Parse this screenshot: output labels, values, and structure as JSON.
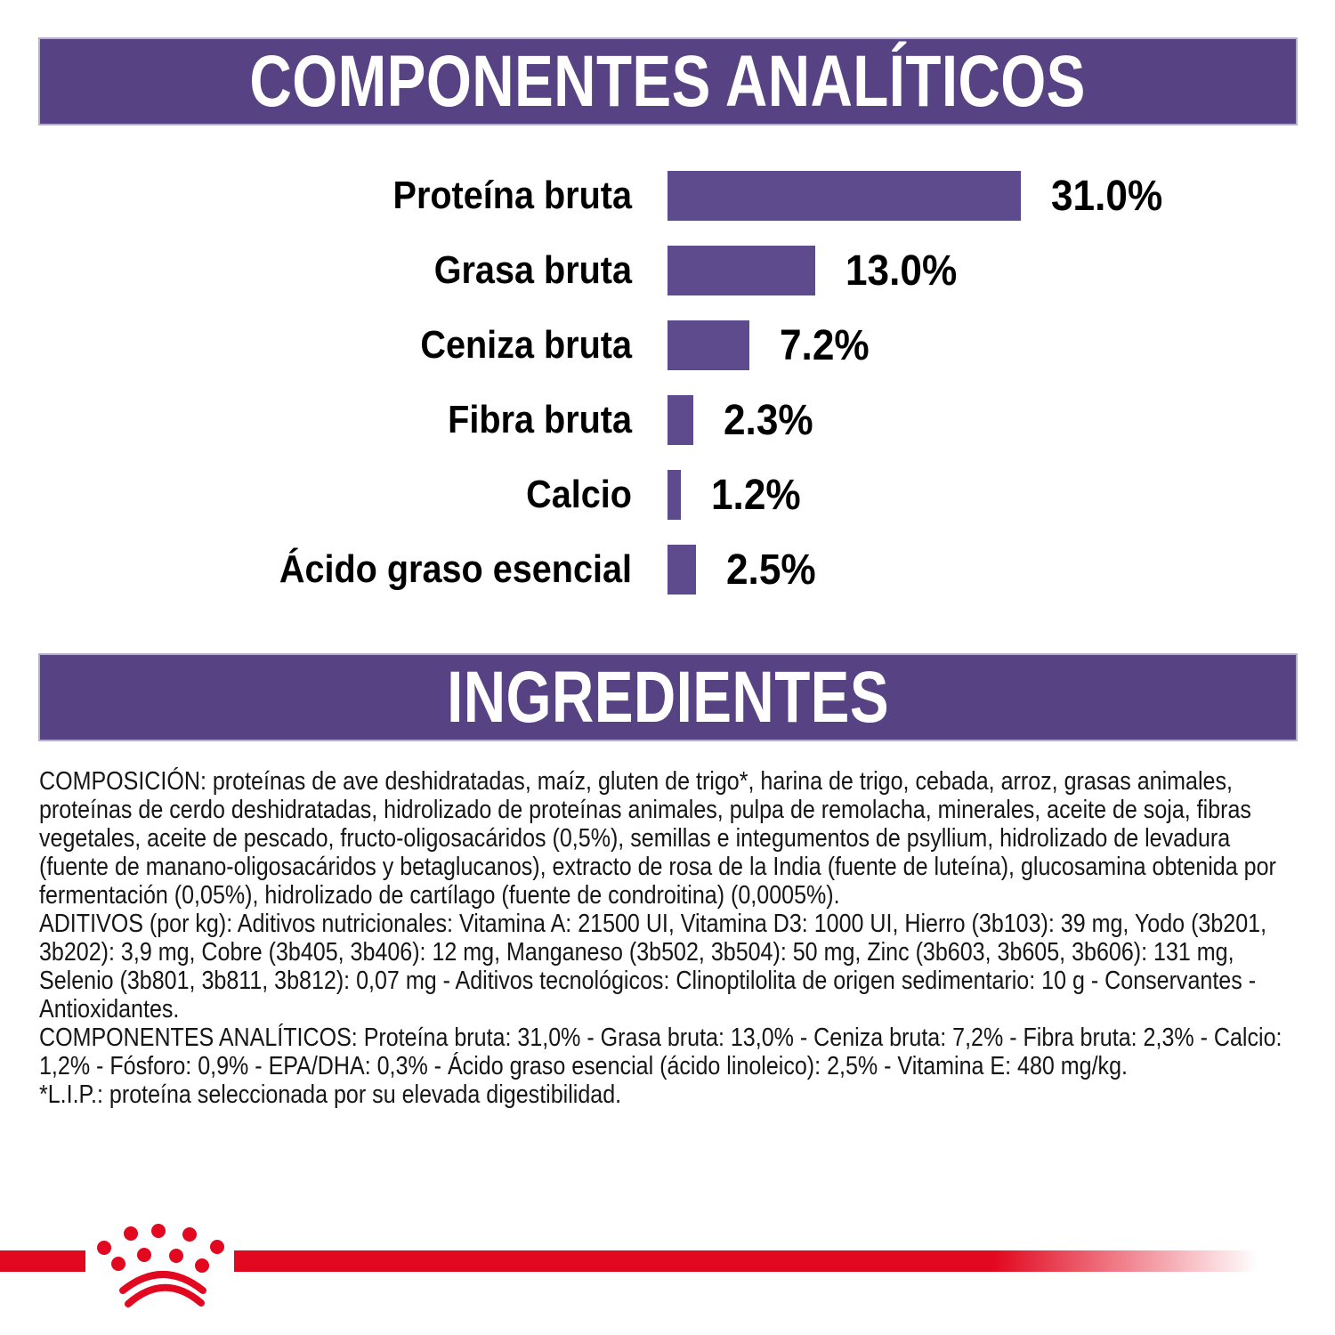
{
  "colors": {
    "purple_banner": "#574284",
    "purple_bar": "#5d4b8d",
    "red": "#e2081f",
    "text": "#161616"
  },
  "sections": {
    "analytical_title": "COMPONENTES ANALÍTICOS",
    "ingredients_title": "INGREDIENTES"
  },
  "chart_data": {
    "type": "bar",
    "orientation": "horizontal",
    "title": "COMPONENTES ANALÍTICOS",
    "categories": [
      "Proteína bruta",
      "Grasa bruta",
      "Ceniza bruta",
      "Fibra bruta",
      "Calcio",
      "Ácido graso esencial"
    ],
    "values": [
      31.0,
      13.0,
      7.2,
      2.3,
      1.2,
      2.5
    ],
    "value_labels": [
      "31.0%",
      "13.0%",
      "7.2%",
      "2.3%",
      "1.2%",
      "2.5%"
    ],
    "unit": "%",
    "xlim": [
      0,
      31
    ],
    "grid": false,
    "legend": false,
    "bar_color": "#5d4b8d",
    "label_position": "left",
    "value_position": "right-of-bar"
  },
  "ingredients_text": {
    "composition": "COMPOSICIÓN: proteínas de ave deshidratadas, maíz, gluten de trigo*, harina de trigo, cebada, arroz, grasas animales, proteínas de cerdo deshidratadas, hidrolizado de proteínas animales, pulpa de remolacha, minerales, aceite de soja, fibras vegetales, aceite de pescado, fructo-oligosacáridos (0,5%), semillas e integumentos de psyllium, hidrolizado de levadura (fuente de manano-oligosacáridos y betaglucanos), extracto de rosa de la India (fuente de luteína), glucosamina obtenida por fermentación (0,05%), hidrolizado de cartílago (fuente de condroitina) (0,0005%).",
    "additives": "ADITIVOS (por kg): Aditivos nutricionales: Vitamina A: 21500 UI, Vitamina D3: 1000 UI, Hierro (3b103): 39 mg, Yodo (3b201, 3b202): 3,9 mg, Cobre (3b405, 3b406): 12 mg, Manganeso (3b502, 3b504): 50 mg, Zinc (3b603, 3b605, 3b606): 131 mg, Selenio (3b801, 3b811, 3b812): 0,07 mg - Aditivos tecnológicos: Clinoptilolita de origen sedimentario: 10 g - Conservantes - Antioxidantes.",
    "analytical_constituents": "COMPONENTES ANALÍTICOS: Proteína bruta: 31,0% - Grasa bruta: 13,0% - Ceniza bruta: 7,2% - Fibra bruta: 2,3% - Calcio: 1,2% - Fósforo: 0,9% - EPA/DHA: 0,3% - Ácido graso esencial (ácido linoleico): 2,5% - Vitamina E: 480 mg/kg.",
    "lip_note": "*L.I.P.: proteína seleccionada por su elevada digestibilidad."
  },
  "footer": {
    "logo": "royal-canin-crown"
  }
}
